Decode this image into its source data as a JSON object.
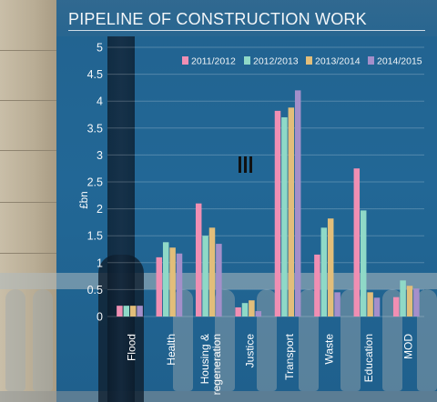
{
  "title": "PIPELINE OF CONSTRUCTION WORK",
  "chart_data": {
    "type": "bar",
    "title": "PIPELINE OF CONSTRUCTION WORK",
    "xlabel": "",
    "ylabel": "£bn",
    "ylim": [
      0,
      5
    ],
    "yticks": [
      "0",
      "0.5",
      "1",
      "1.5",
      "2",
      "2.5",
      "3",
      "3.5",
      "4",
      "4.5",
      "5"
    ],
    "grid": true,
    "legend_position": "top-right",
    "categories": [
      "Flood",
      "Health",
      "Housing & regeneration",
      "Justice",
      "Transport",
      "Waste",
      "Education",
      "MOD"
    ],
    "category_lines": [
      [
        "Flood"
      ],
      [
        "Health"
      ],
      [
        "Housing &",
        "regeneration"
      ],
      [
        "Justice"
      ],
      [
        "Transport"
      ],
      [
        "Waste"
      ],
      [
        "Education"
      ],
      [
        "MOD"
      ]
    ],
    "series": [
      {
        "name": "2011/2012",
        "color": "#f08fb3",
        "values": [
          0.2,
          1.1,
          2.1,
          0.17,
          3.82,
          1.15,
          2.75,
          0.36
        ]
      },
      {
        "name": "2012/2013",
        "color": "#8fd9c7",
        "values": [
          0.2,
          1.38,
          1.5,
          0.25,
          3.7,
          1.65,
          1.97,
          0.67
        ]
      },
      {
        "name": "2013/2014",
        "color": "#e2be7a",
        "values": [
          0.2,
          1.28,
          1.65,
          0.3,
          3.88,
          1.82,
          0.45,
          0.57
        ]
      },
      {
        "name": "2014/2015",
        "color": "#a48fca",
        "values": [
          0.2,
          1.17,
          1.35,
          0.1,
          4.2,
          0.45,
          0.35,
          0.52
        ]
      }
    ]
  }
}
